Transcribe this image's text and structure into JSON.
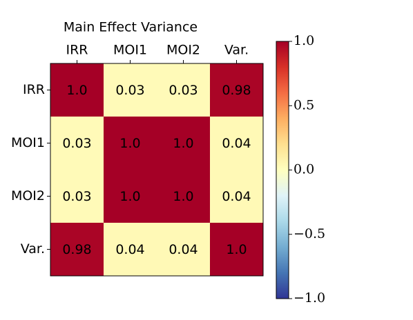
{
  "chart_data": {
    "type": "heatmap",
    "title": "Main Effect Variance",
    "x_categories": [
      "IRR",
      "MOI1",
      "MOI2",
      "Var."
    ],
    "y_categories": [
      "IRR",
      "MOI1",
      "MOI2",
      "Var."
    ],
    "values": [
      [
        1,
        0.03,
        0.03,
        0.98
      ],
      [
        0.03,
        1,
        1,
        0.04
      ],
      [
        0.03,
        1,
        1,
        0.04
      ],
      [
        0.98,
        0.04,
        0.04,
        1
      ]
    ],
    "value_labels": [
      [
        "1.0",
        "0.03",
        "0.03",
        "0.98"
      ],
      [
        "0.03",
        "1.0",
        "1.0",
        "0.04"
      ],
      [
        "0.03",
        "1.0",
        "1.0",
        "0.04"
      ],
      [
        "0.98",
        "0.04",
        "0.04",
        "1.0"
      ]
    ],
    "clim": [
      -1,
      1
    ],
    "cticks": [
      {
        "value": 1,
        "label": "1.0"
      },
      0.5,
      {
        "value": 0,
        "label": "0.0"
      },
      {
        "value": -0.5,
        "label": "−0.5"
      },
      {
        "value": -1,
        "label": "−1.0"
      }
    ],
    "colormap": [
      "#313695",
      "#4575b4",
      "#74add1",
      "#abd9e9",
      "#e0f3f8",
      "#ffffbf",
      "#fee090",
      "#fdae61",
      "#f46d43",
      "#d73027",
      "#a50026"
    ]
  }
}
